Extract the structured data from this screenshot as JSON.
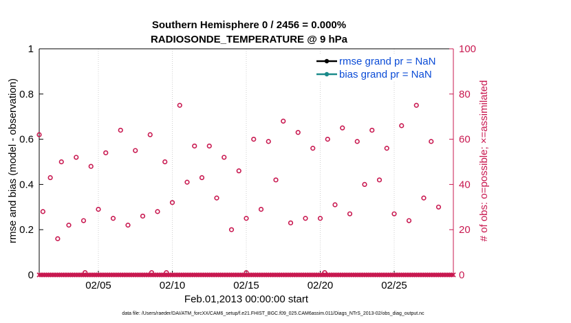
{
  "colors": {
    "axis_left": "#000000",
    "axis_right": "#c8174f",
    "marker": "#c8174f",
    "rmse_line": "#000000",
    "bias_line": "#1a8a8a",
    "legend_text": "#0a4bd6",
    "grid": "#cfcfcf"
  },
  "chart_data": {
    "type": "scatter",
    "title_line1": "Southern Hemisphere 0 / 2456 = 0.000%",
    "title_line2": "RADIOSONDE_TEMPERATURE @ 9 hPa",
    "xlabel": "Feb.01,2013 00:00:00 start",
    "ylabel_left": "rmse and bias (model - observation)",
    "ylabel_right": "# of obs: o=possible; ×=assimilated",
    "ylim_left": [
      0,
      1
    ],
    "ylim_right": [
      0,
      100
    ],
    "xlim_days": [
      1,
      29
    ],
    "yticks_left": [
      "0",
      "0.2",
      "0.4",
      "0.6",
      "0.8",
      "1"
    ],
    "yticks_right": [
      "0",
      "20",
      "40",
      "60",
      "80",
      "100"
    ],
    "xticks": [
      {
        "day": 5,
        "label": "02/05"
      },
      {
        "day": 10,
        "label": "02/10"
      },
      {
        "day": 15,
        "label": "02/15"
      },
      {
        "day": 20,
        "label": "02/20"
      },
      {
        "day": 25,
        "label": "02/25"
      }
    ],
    "grid": true,
    "legend": [
      {
        "label": "rmse grand pr = NaN",
        "color": "#000000"
      },
      {
        "label": "bias grand pr = NaN",
        "color": "#1a8a8a"
      }
    ],
    "obs_possible": [
      {
        "day": 1.0,
        "count": 62
      },
      {
        "day": 1.25,
        "count": 28
      },
      {
        "day": 1.75,
        "count": 43
      },
      {
        "day": 2.25,
        "count": 16
      },
      {
        "day": 2.5,
        "count": 50
      },
      {
        "day": 3.0,
        "count": 22
      },
      {
        "day": 3.5,
        "count": 52
      },
      {
        "day": 4.0,
        "count": 24
      },
      {
        "day": 4.5,
        "count": 48
      },
      {
        "day": 5.0,
        "count": 29
      },
      {
        "day": 5.5,
        "count": 54
      },
      {
        "day": 6.0,
        "count": 25
      },
      {
        "day": 6.5,
        "count": 64
      },
      {
        "day": 7.0,
        "count": 22
      },
      {
        "day": 7.5,
        "count": 55
      },
      {
        "day": 8.0,
        "count": 26
      },
      {
        "day": 8.5,
        "count": 62
      },
      {
        "day": 9.0,
        "count": 28
      },
      {
        "day": 9.5,
        "count": 50
      },
      {
        "day": 10.0,
        "count": 32
      },
      {
        "day": 10.5,
        "count": 75
      },
      {
        "day": 11.0,
        "count": 41
      },
      {
        "day": 11.5,
        "count": 57
      },
      {
        "day": 12.0,
        "count": 43
      },
      {
        "day": 12.5,
        "count": 57
      },
      {
        "day": 13.0,
        "count": 34
      },
      {
        "day": 13.5,
        "count": 52
      },
      {
        "day": 14.0,
        "count": 20
      },
      {
        "day": 14.5,
        "count": 46
      },
      {
        "day": 15.0,
        "count": 25
      },
      {
        "day": 15.5,
        "count": 60
      },
      {
        "day": 16.0,
        "count": 29
      },
      {
        "day": 16.5,
        "count": 59
      },
      {
        "day": 17.0,
        "count": 42
      },
      {
        "day": 17.5,
        "count": 68
      },
      {
        "day": 18.0,
        "count": 23
      },
      {
        "day": 18.5,
        "count": 63
      },
      {
        "day": 19.0,
        "count": 25
      },
      {
        "day": 19.5,
        "count": 56
      },
      {
        "day": 20.0,
        "count": 25
      },
      {
        "day": 20.5,
        "count": 60
      },
      {
        "day": 21.0,
        "count": 31
      },
      {
        "day": 21.5,
        "count": 65
      },
      {
        "day": 22.0,
        "count": 27
      },
      {
        "day": 22.5,
        "count": 59
      },
      {
        "day": 23.0,
        "count": 40
      },
      {
        "day": 23.5,
        "count": 64
      },
      {
        "day": 24.0,
        "count": 42
      },
      {
        "day": 24.5,
        "count": 56
      },
      {
        "day": 25.0,
        "count": 27
      },
      {
        "day": 25.5,
        "count": 66
      },
      {
        "day": 26.0,
        "count": 24
      },
      {
        "day": 26.5,
        "count": 75
      },
      {
        "day": 27.0,
        "count": 34
      },
      {
        "day": 27.5,
        "count": 59
      },
      {
        "day": 28.0,
        "count": 30
      }
    ],
    "obs_possible_near_zero_days": [
      4.1,
      8.6,
      9.6,
      15.0,
      20.3
    ],
    "obs_assimilated_count": 0,
    "obs_assimilated_step_days": 0.125
  },
  "footer": {
    "data_file": "data file: /Users/raeder/DAI/ATM_forcXX/CAM6_setup/f.e21.FHIST_BGC.f09_025.CAM6assim.011/Diags_NTrS_2013-02/obs_diag_output.nc"
  }
}
